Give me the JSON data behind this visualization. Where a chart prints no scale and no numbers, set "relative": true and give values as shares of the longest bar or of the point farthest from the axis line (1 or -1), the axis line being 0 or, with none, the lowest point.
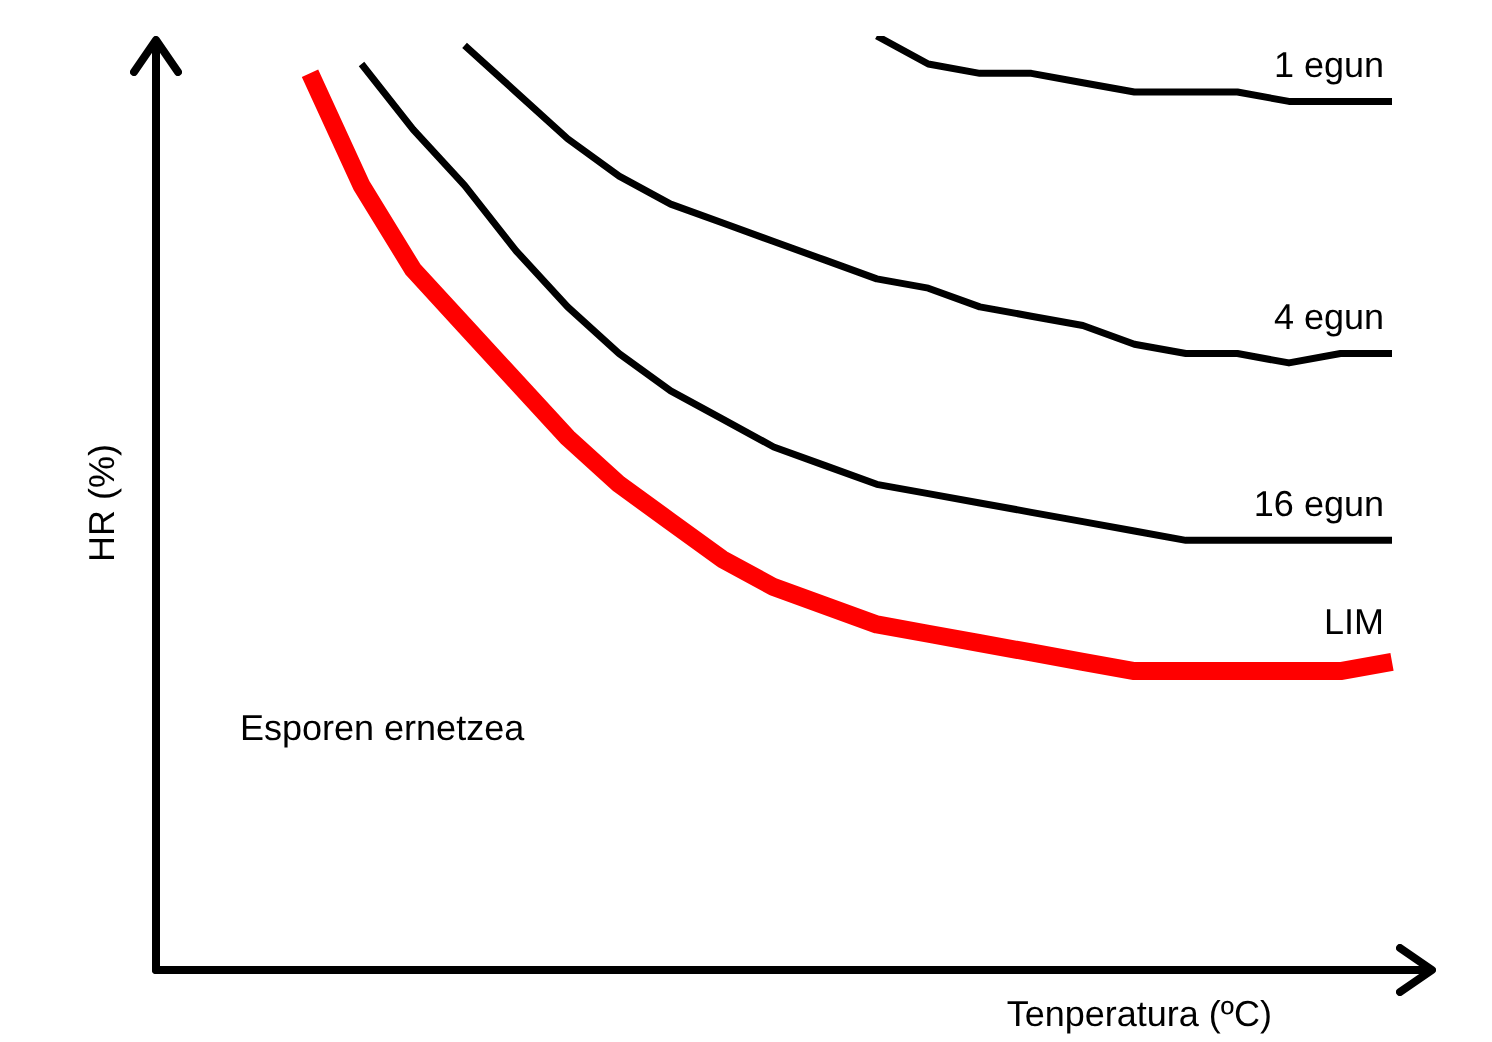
{
  "chart_data": {
    "type": "line",
    "relative": true,
    "xlabel": "Tenperatura (ºC)",
    "ylabel": "HR (%)",
    "legend": false,
    "marker": "none",
    "categories": [
      null,
      null,
      null,
      null,
      null,
      null,
      null,
      null,
      null,
      null,
      null,
      null,
      null,
      null,
      null,
      null,
      null,
      null,
      null,
      null,
      null,
      null
    ],
    "series": [
      {
        "name": "1 egun",
        "color": "#000000",
        "values": [
          null,
          null,
          null,
          null,
          null,
          null,
          null,
          null,
          null,
          null,
          null,
          1,
          0.97,
          0.96,
          0.96,
          0.95,
          0.94,
          0.94,
          0.94,
          0.93,
          0.93,
          0.93
        ]
      },
      {
        "name": "4 egun",
        "color": "#000000",
        "values": [
          null,
          null,
          null,
          0.99,
          0.94,
          0.89,
          0.85,
          0.82,
          0.8,
          0.78,
          0.76,
          0.74,
          0.73,
          0.71,
          0.7,
          0.69,
          0.67,
          0.66,
          0.66,
          0.65,
          0.66,
          0.66
        ]
      },
      {
        "name": "16 egun",
        "color": "#000000",
        "values": [
          null,
          0.97,
          0.9,
          0.84,
          0.77,
          0.71,
          0.66,
          0.62,
          0.59,
          0.56,
          0.54,
          0.52,
          0.51,
          0.5,
          0.49,
          0.48,
          0.47,
          0.46,
          0.46,
          0.46,
          0.46,
          0.46
        ]
      },
      {
        "name": "LIM",
        "color": "#ff0000",
        "values": [
          0.96,
          0.84,
          0.75,
          0.69,
          0.63,
          0.57,
          0.52,
          0.48,
          0.44,
          0.41,
          0.39,
          0.37,
          0.36,
          0.35,
          0.34,
          0.33,
          0.32,
          0.32,
          0.32,
          0.32,
          0.32,
          0.33
        ]
      }
    ],
    "annotations": [
      "Esporen ernetzea"
    ]
  }
}
